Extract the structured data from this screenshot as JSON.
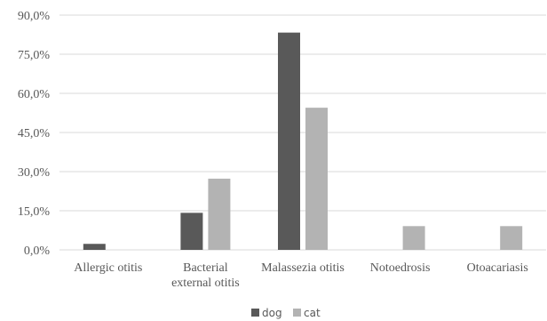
{
  "chart_data": {
    "type": "bar",
    "categories": [
      [
        "Allergic otitis"
      ],
      [
        "Bacterial",
        "external otitis"
      ],
      [
        "Malassezia otitis"
      ],
      [
        "Notoedrosis"
      ],
      [
        "Otoacariasis"
      ]
    ],
    "series": [
      {
        "name": "dog",
        "color": "#595959",
        "values": [
          2.3,
          14.2,
          83.3,
          0,
          0
        ]
      },
      {
        "name": "cat",
        "color": "#b3b3b3",
        "values": [
          0,
          27.3,
          54.5,
          9.1,
          9.1
        ]
      }
    ],
    "ylim": [
      0,
      90
    ],
    "yticks": [
      "0,0%",
      "15,0%",
      "30,0%",
      "45,0%",
      "60,0%",
      "75,0%",
      "90,0%"
    ],
    "grid": true,
    "legend_position": "bottom"
  }
}
